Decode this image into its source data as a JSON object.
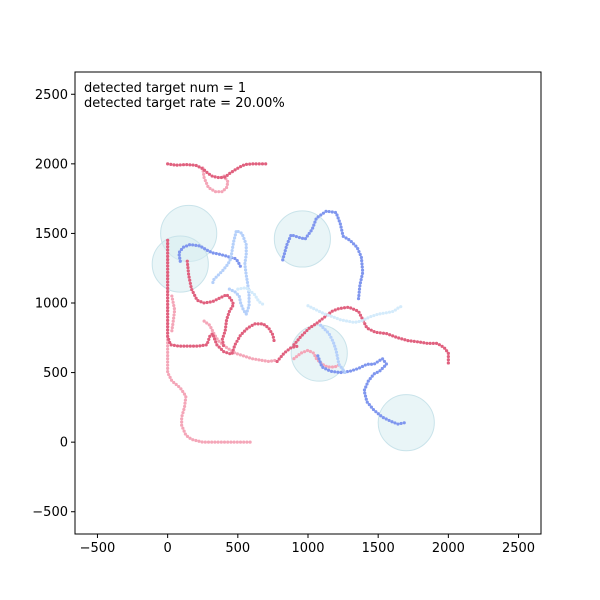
{
  "chart_data": {
    "type": "scatter",
    "title": "",
    "xlabel": "",
    "ylabel": "",
    "xlim": [
      -660,
      2660
    ],
    "ylim": [
      -660,
      2660
    ],
    "xticks": [
      -500,
      0,
      500,
      1000,
      1500,
      2000,
      2500
    ],
    "yticks": [
      -500,
      0,
      500,
      1000,
      1500,
      2000,
      2500
    ],
    "grid": false,
    "annotations": [
      "detected target num = 1",
      "detected target rate = 20.00%"
    ],
    "colors": {
      "pink": "#f4a6b8",
      "red": "#e0607e",
      "blue": "#7f96ee",
      "light_blue": "#b5d0fa",
      "pale_blue": "#d4ebfb",
      "circle_fill": "#d7ecf0"
    },
    "circles": [
      {
        "x": 150,
        "y": 1500,
        "r": 200
      },
      {
        "x": 90,
        "y": 1280,
        "r": 200
      },
      {
        "x": 960,
        "y": 1460,
        "r": 200
      },
      {
        "x": 1080,
        "y": 640,
        "r": 200
      },
      {
        "x": 1700,
        "y": 140,
        "r": 200
      }
    ],
    "series": [
      {
        "color": "pink",
        "points": [
          [
            250,
            1970
          ],
          [
            260,
            1900
          ],
          [
            290,
            1830
          ],
          [
            340,
            1800
          ],
          [
            390,
            1800
          ],
          [
            420,
            1830
          ],
          [
            430,
            1870
          ],
          [
            410,
            1900
          ],
          [
            390,
            1930
          ]
        ]
      },
      {
        "color": "red",
        "points": [
          [
            0,
            2000
          ],
          [
            60,
            1990
          ],
          [
            130,
            1995
          ],
          [
            200,
            1990
          ],
          [
            250,
            1965
          ],
          [
            290,
            1930
          ],
          [
            320,
            1910
          ],
          [
            370,
            1900
          ],
          [
            410,
            1905
          ],
          [
            440,
            1930
          ],
          [
            470,
            1950
          ],
          [
            510,
            1975
          ],
          [
            550,
            1995
          ],
          [
            610,
            2000
          ],
          [
            680,
            2000
          ],
          [
            720,
            2000
          ]
        ]
      },
      {
        "color": "pink",
        "points": [
          [
            0,
            1450
          ],
          [
            0,
            1300
          ],
          [
            0,
            1100
          ],
          [
            0,
            900
          ],
          [
            0,
            700
          ],
          [
            0,
            500
          ],
          [
            30,
            440
          ],
          [
            90,
            390
          ],
          [
            130,
            330
          ],
          [
            120,
            250
          ],
          [
            100,
            180
          ],
          [
            100,
            120
          ],
          [
            130,
            50
          ],
          [
            170,
            20
          ],
          [
            250,
            0
          ],
          [
            350,
            0
          ],
          [
            450,
            0
          ],
          [
            540,
            0
          ],
          [
            600,
            0
          ]
        ]
      },
      {
        "color": "pink",
        "points": [
          [
            30,
            1050
          ],
          [
            50,
            950
          ],
          [
            40,
            870
          ],
          [
            30,
            800
          ]
        ]
      },
      {
        "color": "pink",
        "points": [
          [
            260,
            870
          ],
          [
            300,
            840
          ],
          [
            330,
            780
          ],
          [
            360,
            730
          ],
          [
            420,
            680
          ],
          [
            480,
            640
          ],
          [
            540,
            620
          ],
          [
            600,
            600
          ],
          [
            660,
            590
          ],
          [
            720,
            580
          ],
          [
            780,
            590
          ]
        ]
      },
      {
        "color": "red",
        "points": [
          [
            0,
            1450
          ],
          [
            0,
            1000
          ],
          [
            0,
            760
          ],
          [
            20,
            700
          ],
          [
            80,
            690
          ],
          [
            150,
            690
          ],
          [
            220,
            690
          ],
          [
            280,
            700
          ],
          [
            300,
            760
          ],
          [
            320,
            780
          ],
          [
            350,
            700
          ],
          [
            400,
            650
          ],
          [
            460,
            630
          ]
        ]
      },
      {
        "color": "red",
        "points": [
          [
            140,
            1300
          ],
          [
            150,
            1200
          ],
          [
            170,
            1100
          ],
          [
            210,
            1020
          ],
          [
            260,
            1000
          ],
          [
            320,
            1010
          ],
          [
            380,
            1040
          ],
          [
            420,
            1060
          ],
          [
            450,
            1030
          ],
          [
            470,
            990
          ],
          [
            440,
            940
          ],
          [
            420,
            880
          ],
          [
            410,
            800
          ],
          [
            390,
            740
          ],
          [
            400,
            680
          ]
        ]
      },
      {
        "color": "red",
        "points": [
          [
            460,
            640
          ],
          [
            480,
            700
          ],
          [
            520,
            770
          ],
          [
            570,
            820
          ],
          [
            620,
            850
          ],
          [
            680,
            850
          ],
          [
            720,
            820
          ],
          [
            750,
            770
          ],
          [
            760,
            720
          ]
        ]
      },
      {
        "color": "red",
        "points": [
          [
            900,
            700
          ],
          [
            950,
            760
          ],
          [
            1010,
            820
          ],
          [
            1070,
            860
          ],
          [
            1120,
            900
          ],
          [
            1170,
            940
          ],
          [
            1220,
            960
          ],
          [
            1290,
            970
          ],
          [
            1360,
            940
          ],
          [
            1390,
            880
          ],
          [
            1420,
            820
          ],
          [
            1480,
            790
          ],
          [
            1560,
            780
          ],
          [
            1640,
            750
          ],
          [
            1710,
            730
          ],
          [
            1790,
            720
          ],
          [
            1850,
            710
          ],
          [
            1920,
            710
          ],
          [
            1970,
            680
          ],
          [
            2000,
            640
          ],
          [
            2000,
            590
          ],
          [
            2000,
            550
          ]
        ]
      },
      {
        "color": "red",
        "points": [
          [
            780,
            580
          ],
          [
            830,
            640
          ],
          [
            880,
            680
          ],
          [
            930,
            690
          ]
        ]
      },
      {
        "color": "pink",
        "points": [
          [
            900,
            600
          ],
          [
            950,
            640
          ],
          [
            1000,
            660
          ],
          [
            1040,
            640
          ],
          [
            1060,
            600
          ],
          [
            1100,
            560
          ],
          [
            1140,
            540
          ],
          [
            1190,
            540
          ],
          [
            1230,
            560
          ]
        ]
      },
      {
        "color": "blue",
        "points": [
          [
            820,
            1310
          ],
          [
            850,
            1420
          ],
          [
            880,
            1490
          ],
          [
            910,
            1480
          ],
          [
            940,
            1470
          ],
          [
            980,
            1460
          ],
          [
            1030,
            1530
          ],
          [
            1060,
            1610
          ],
          [
            1130,
            1660
          ],
          [
            1200,
            1650
          ],
          [
            1230,
            1570
          ],
          [
            1250,
            1480
          ],
          [
            1300,
            1450
          ],
          [
            1350,
            1400
          ],
          [
            1380,
            1330
          ],
          [
            1390,
            1220
          ],
          [
            1370,
            1130
          ],
          [
            1360,
            1030
          ]
        ]
      },
      {
        "color": "blue",
        "points": [
          [
            1070,
            620
          ],
          [
            1100,
            540
          ],
          [
            1160,
            510
          ],
          [
            1230,
            500
          ],
          [
            1300,
            510
          ],
          [
            1360,
            530
          ],
          [
            1420,
            560
          ],
          [
            1470,
            560
          ],
          [
            1530,
            600
          ],
          [
            1560,
            560
          ],
          [
            1510,
            510
          ],
          [
            1470,
            490
          ],
          [
            1430,
            440
          ],
          [
            1400,
            370
          ],
          [
            1420,
            290
          ],
          [
            1470,
            230
          ],
          [
            1530,
            180
          ],
          [
            1590,
            150
          ],
          [
            1640,
            130
          ],
          [
            1690,
            140
          ]
        ]
      },
      {
        "color": "blue",
        "points": [
          [
            90,
            1300
          ],
          [
            80,
            1360
          ],
          [
            110,
            1400
          ],
          [
            160,
            1420
          ],
          [
            230,
            1410
          ],
          [
            280,
            1380
          ],
          [
            320,
            1360
          ],
          [
            370,
            1350
          ],
          [
            410,
            1340
          ],
          [
            440,
            1330
          ],
          [
            480,
            1320
          ],
          [
            500,
            1300
          ],
          [
            520,
            1260
          ]
        ]
      },
      {
        "color": "light_blue",
        "points": [
          [
            440,
            1100
          ],
          [
            480,
            1080
          ],
          [
            510,
            1050
          ],
          [
            520,
            1000
          ],
          [
            540,
            950
          ],
          [
            560,
            920
          ],
          [
            580,
            980
          ],
          [
            580,
            1060
          ],
          [
            570,
            1140
          ],
          [
            560,
            1200
          ],
          [
            550,
            1280
          ],
          [
            560,
            1350
          ],
          [
            560,
            1420
          ],
          [
            530,
            1500
          ],
          [
            490,
            1520
          ],
          [
            470,
            1440
          ],
          [
            460,
            1380
          ],
          [
            450,
            1320
          ],
          [
            430,
            1280
          ],
          [
            390,
            1230
          ],
          [
            360,
            1200
          ],
          [
            330,
            1170
          ],
          [
            320,
            1140
          ]
        ]
      },
      {
        "color": "pale_blue",
        "points": [
          [
            500,
            1100
          ],
          [
            560,
            1110
          ],
          [
            620,
            1060
          ],
          [
            650,
            1010
          ],
          [
            680,
            990
          ]
        ]
      },
      {
        "color": "light_blue",
        "points": [
          [
            1090,
            840
          ],
          [
            1150,
            780
          ],
          [
            1180,
            720
          ],
          [
            1200,
            660
          ],
          [
            1210,
            610
          ],
          [
            1220,
            560
          ],
          [
            1250,
            520
          ],
          [
            1270,
            490
          ]
        ]
      },
      {
        "color": "pale_blue",
        "points": [
          [
            1000,
            980
          ],
          [
            1060,
            950
          ],
          [
            1120,
            920
          ],
          [
            1180,
            900
          ],
          [
            1230,
            880
          ],
          [
            1280,
            870
          ],
          [
            1330,
            860
          ],
          [
            1380,
            870
          ],
          [
            1440,
            900
          ],
          [
            1500,
            920
          ],
          [
            1560,
            930
          ],
          [
            1610,
            940
          ],
          [
            1650,
            970
          ],
          [
            1680,
            980
          ]
        ]
      }
    ]
  }
}
